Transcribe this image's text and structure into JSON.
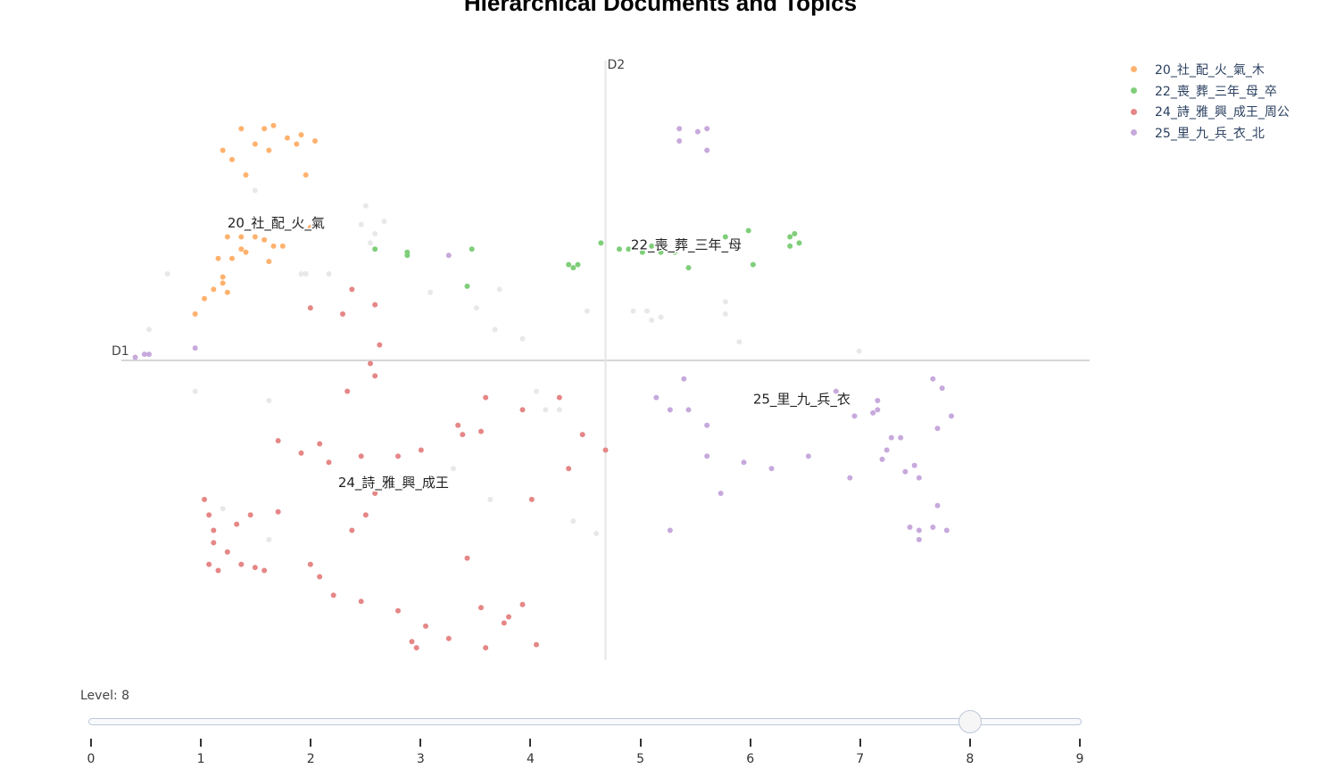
{
  "title": "Hierarchical Documents and Topics",
  "chart_data": {
    "type": "scatter",
    "title": "Hierarchical Documents and Topics",
    "xaxis_label": "D1",
    "yaxis_label": "D2",
    "xlim": [
      -10.5,
      10.5
    ],
    "ylim": [
      -9.7,
      9.7
    ],
    "grid": false,
    "legend_position": "top-right",
    "unassigned_color": "#e8e8e8",
    "unassigned_points": [
      [
        -7.6,
        5.5
      ],
      [
        -5.2,
        5.0
      ],
      [
        -5.3,
        4.4
      ],
      [
        -5.0,
        4.1
      ],
      [
        -4.8,
        4.5
      ],
      [
        -5.1,
        3.8
      ],
      [
        -6.5,
        2.8
      ],
      [
        -6.6,
        2.8
      ],
      [
        -9.5,
        2.8
      ],
      [
        -9.9,
        1.0
      ],
      [
        -8.9,
        -1.0
      ],
      [
        -7.3,
        -1.3
      ],
      [
        -6.5,
        2.8
      ],
      [
        -6.0,
        2.8
      ],
      [
        -3.8,
        2.2
      ],
      [
        -2.8,
        1.7
      ],
      [
        -2.3,
        2.3
      ],
      [
        -2.4,
        1.0
      ],
      [
        -1.8,
        0.7
      ],
      [
        -1.5,
        -1.0
      ],
      [
        -1.3,
        -1.6
      ],
      [
        -1.0,
        -1.6
      ],
      [
        -0.4,
        1.6
      ],
      [
        -3.3,
        -3.5
      ],
      [
        -2.5,
        -4.5
      ],
      [
        -0.7,
        -5.2
      ],
      [
        -0.2,
        -5.6
      ],
      [
        0.6,
        1.6
      ],
      [
        0.9,
        1.6
      ],
      [
        1.0,
        1.3
      ],
      [
        1.2,
        1.4
      ],
      [
        2.6,
        1.5
      ],
      [
        2.6,
        1.9
      ],
      [
        2.9,
        0.6
      ],
      [
        5.5,
        0.3
      ],
      [
        -7.3,
        -5.8
      ],
      [
        -8.3,
        -4.8
      ]
    ],
    "series": [
      {
        "name": "20_社_配_火_氣_木",
        "label": "20_社_配_火_氣",
        "label_pos": [
          -8.2,
          4.3
        ],
        "color": "#ffb26e",
        "points": [
          [
            -8.3,
            6.8
          ],
          [
            -8.1,
            6.5
          ],
          [
            -7.9,
            7.5
          ],
          [
            -7.6,
            7.0
          ],
          [
            -7.3,
            6.8
          ],
          [
            -7.4,
            7.5
          ],
          [
            -7.8,
            6.0
          ],
          [
            -7.2,
            7.6
          ],
          [
            -6.9,
            7.2
          ],
          [
            -6.7,
            7.0
          ],
          [
            -6.6,
            7.3
          ],
          [
            -6.5,
            6.0
          ],
          [
            -6.3,
            7.1
          ],
          [
            -8.2,
            4.0
          ],
          [
            -8.4,
            3.3
          ],
          [
            -8.1,
            3.3
          ],
          [
            -7.9,
            3.6
          ],
          [
            -7.8,
            3.5
          ],
          [
            -7.9,
            4.0
          ],
          [
            -7.6,
            4.0
          ],
          [
            -7.4,
            3.9
          ],
          [
            -7.2,
            3.7
          ],
          [
            -7.3,
            3.2
          ],
          [
            -7.0,
            3.7
          ],
          [
            -6.4,
            4.3
          ],
          [
            -8.3,
            2.7
          ],
          [
            -8.5,
            2.3
          ],
          [
            -8.7,
            2.0
          ],
          [
            -8.9,
            1.5
          ],
          [
            -8.2,
            2.2
          ],
          [
            -8.3,
            2.5
          ]
        ]
      },
      {
        "name": "22_喪_葬_三年_母_卒",
        "label": "22_喪_葬_三年_母",
        "label_pos": [
          0.55,
          3.6
        ],
        "color": "#7fce7a",
        "points": [
          [
            -5.0,
            3.6
          ],
          [
            -4.3,
            3.4
          ],
          [
            -4.3,
            3.5
          ],
          [
            -3.0,
            2.4
          ],
          [
            -2.9,
            3.6
          ],
          [
            -0.8,
            3.1
          ],
          [
            -0.7,
            3.0
          ],
          [
            -0.1,
            3.8
          ],
          [
            0.3,
            3.6
          ],
          [
            0.5,
            3.6
          ],
          [
            0.8,
            3.5
          ],
          [
            1.0,
            3.7
          ],
          [
            1.2,
            3.5
          ],
          [
            1.5,
            3.5
          ],
          [
            1.8,
            3.0
          ],
          [
            2.6,
            4.0
          ],
          [
            3.1,
            4.2
          ],
          [
            3.2,
            3.1
          ],
          [
            4.0,
            4.0
          ],
          [
            4.1,
            4.1
          ],
          [
            4.2,
            3.8
          ],
          [
            4.0,
            3.7
          ],
          [
            -0.6,
            3.1
          ]
        ]
      },
      {
        "name": "24_詩_雅_興_成王_周公",
        "label": "24_詩_雅_興_成王",
        "label_pos": [
          -5.8,
          -4.1
        ],
        "color": "#e58786",
        "points": [
          [
            -5.5,
            2.3
          ],
          [
            -5.0,
            1.8
          ],
          [
            -6.4,
            1.7
          ],
          [
            -5.7,
            1.5
          ],
          [
            -4.9,
            0.5
          ],
          [
            -5.1,
            -0.1
          ],
          [
            -5.0,
            -0.5
          ],
          [
            -5.6,
            -1.0
          ],
          [
            -7.1,
            -2.6
          ],
          [
            -6.6,
            -3.0
          ],
          [
            -6.2,
            -2.7
          ],
          [
            -6.0,
            -3.3
          ],
          [
            -5.3,
            -3.1
          ],
          [
            -4.5,
            -3.1
          ],
          [
            -4.0,
            -2.9
          ],
          [
            -3.2,
            -2.1
          ],
          [
            -3.1,
            -2.4
          ],
          [
            -2.7,
            -2.3
          ],
          [
            -2.6,
            -1.2
          ],
          [
            -1.8,
            -1.6
          ],
          [
            -1.0,
            -1.2
          ],
          [
            -0.5,
            -2.4
          ],
          [
            0.0,
            -2.9
          ],
          [
            -0.8,
            -3.5
          ],
          [
            -1.6,
            -4.5
          ],
          [
            -5.0,
            -4.3
          ],
          [
            -5.2,
            -5.0
          ],
          [
            -5.5,
            -5.5
          ],
          [
            -7.7,
            -5.0
          ],
          [
            -8.6,
            -5.0
          ],
          [
            -8.5,
            -5.5
          ],
          [
            -8.0,
            -5.3
          ],
          [
            -8.2,
            -6.2
          ],
          [
            -8.6,
            -6.6
          ],
          [
            -8.5,
            -5.9
          ],
          [
            -7.9,
            -6.6
          ],
          [
            -7.6,
            -6.7
          ],
          [
            -7.4,
            -6.8
          ],
          [
            -6.4,
            -6.6
          ],
          [
            -6.2,
            -7.0
          ],
          [
            -5.9,
            -7.6
          ],
          [
            -5.3,
            -7.8
          ],
          [
            -4.5,
            -8.1
          ],
          [
            -3.9,
            -8.6
          ],
          [
            -4.2,
            -9.1
          ],
          [
            -4.1,
            -9.3
          ],
          [
            -3.4,
            -9.0
          ],
          [
            -2.6,
            -9.3
          ],
          [
            -2.7,
            -8.0
          ],
          [
            -2.2,
            -8.5
          ],
          [
            -1.8,
            -7.9
          ],
          [
            -2.1,
            -8.3
          ],
          [
            -1.5,
            -9.2
          ],
          [
            -3.0,
            -6.4
          ],
          [
            -8.4,
            -6.8
          ],
          [
            -8.7,
            -4.5
          ],
          [
            -7.1,
            -4.9
          ]
        ]
      },
      {
        "name": "25_里_九_兵_衣_北",
        "label": "25_里_九_兵_衣",
        "label_pos": [
          3.2,
          -1.4
        ],
        "color": "#c7a9dc",
        "points": [
          [
            1.6,
            7.5
          ],
          [
            1.6,
            7.1
          ],
          [
            2.0,
            7.4
          ],
          [
            2.2,
            7.5
          ],
          [
            2.2,
            6.8
          ],
          [
            -3.4,
            3.4
          ],
          [
            -10.2,
            0.1
          ],
          [
            -10.0,
            0.2
          ],
          [
            -9.9,
            0.2
          ],
          [
            -8.9,
            0.4
          ],
          [
            1.1,
            -1.2
          ],
          [
            1.4,
            -1.6
          ],
          [
            1.8,
            -1.6
          ],
          [
            1.7,
            -0.6
          ],
          [
            2.2,
            -2.1
          ],
          [
            2.2,
            -3.1
          ],
          [
            2.5,
            -4.3
          ],
          [
            3.0,
            -3.3
          ],
          [
            3.6,
            -3.5
          ],
          [
            4.4,
            -3.1
          ],
          [
            5.0,
            -1.0
          ],
          [
            5.4,
            -1.8
          ],
          [
            5.8,
            -1.7
          ],
          [
            5.9,
            -1.3
          ],
          [
            5.9,
            -1.6
          ],
          [
            5.3,
            -3.8
          ],
          [
            6.0,
            -3.2
          ],
          [
            6.1,
            -2.9
          ],
          [
            6.2,
            -2.5
          ],
          [
            6.4,
            -2.5
          ],
          [
            6.5,
            -3.6
          ],
          [
            6.7,
            -3.4
          ],
          [
            6.8,
            -3.8
          ],
          [
            7.1,
            -0.6
          ],
          [
            7.3,
            -0.9
          ],
          [
            7.2,
            -2.2
          ],
          [
            7.5,
            -1.8
          ],
          [
            7.2,
            -4.7
          ],
          [
            6.6,
            -5.4
          ],
          [
            6.8,
            -5.5
          ],
          [
            6.8,
            -5.8
          ],
          [
            7.1,
            -5.4
          ],
          [
            7.4,
            -5.5
          ],
          [
            1.4,
            -5.5
          ]
        ]
      }
    ]
  },
  "slider": {
    "label": "Level: 8",
    "value": 8,
    "min": 0,
    "max": 9,
    "ticks": [
      "0",
      "1",
      "2",
      "3",
      "4",
      "5",
      "6",
      "7",
      "8",
      "9"
    ]
  }
}
